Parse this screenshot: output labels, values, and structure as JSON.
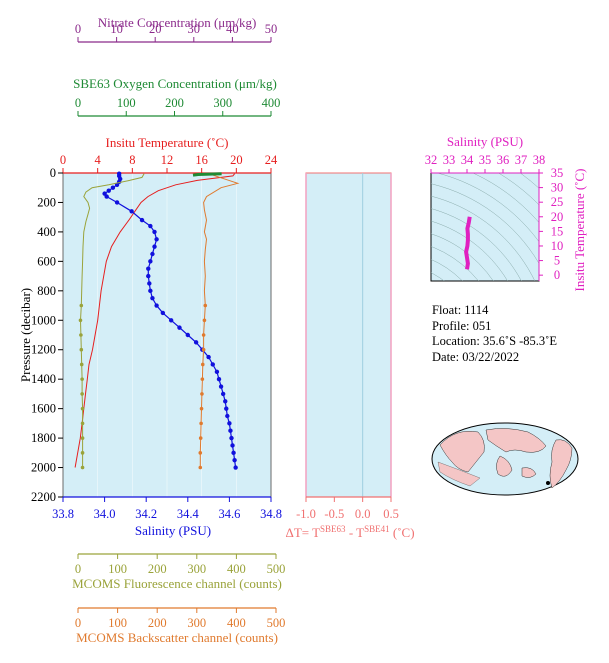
{
  "colors": {
    "nitrate": "#8b2a8b",
    "oxygen": "#1e8a34",
    "temperature": "#e61e1e",
    "salinity": "#1010dd",
    "fluorescence": "#9aa33a",
    "backscatter": "#e07a2e",
    "delta": "#f07070",
    "ts_panel": "#e020c0",
    "plot_bg": "#d4eef7"
  },
  "axes": {
    "nitrate": {
      "label": "Nitrate Concentration (μm/kg)",
      "ticks": [
        "0",
        "10",
        "20",
        "30",
        "40",
        "50"
      ]
    },
    "oxygen": {
      "label": "SBE63 Oxygen Concentration (μm/kg)",
      "ticks": [
        "0",
        "100",
        "200",
        "300",
        "400"
      ]
    },
    "temperature": {
      "label": "Insitu Temperature (˚C)",
      "ticks": [
        "0",
        "4",
        "8",
        "12",
        "16",
        "20",
        "24"
      ]
    },
    "pressure": {
      "label": "Pressure (decibar)",
      "ticks": [
        "0",
        "200",
        "400",
        "600",
        "800",
        "1000",
        "1200",
        "1400",
        "1600",
        "1800",
        "2000",
        "2200"
      ]
    },
    "salinity": {
      "label": "Salinity (PSU)",
      "ticks": [
        "33.8",
        "34.0",
        "34.2",
        "34.4",
        "34.6",
        "34.8"
      ]
    },
    "delta": {
      "label_prefix": "ΔT= T",
      "label_sup1": "SBE63",
      "label_mid": " - T",
      "label_sup2": "SBE41",
      "label_suffix": " (˚C)",
      "ticks": [
        "-1.0",
        "-0.5",
        "0.0",
        "0.5"
      ]
    },
    "fluorescence": {
      "label": "MCOMS Fluorescence channel (counts)",
      "ticks": [
        "0",
        "100",
        "200",
        "300",
        "400",
        "500"
      ]
    },
    "backscatter": {
      "label": "MCOMS Backscatter channel (counts)",
      "ticks": [
        "0",
        "100",
        "200",
        "300",
        "400",
        "500"
      ]
    },
    "ts_salinity": {
      "label": "Salinity (PSU)",
      "ticks": [
        "32",
        "33",
        "34",
        "35",
        "36",
        "37",
        "38"
      ]
    },
    "ts_temperature": {
      "label": "Insitu Temperature (˚C)",
      "ticks": [
        "0",
        "5",
        "10",
        "15",
        "20",
        "25",
        "30",
        "35"
      ]
    }
  },
  "info": {
    "float": "Float:  1114",
    "profile": "Profile:  051",
    "location": "Location:  35.6˚S  -85.3˚E",
    "date": "Date:  03/22/2022"
  },
  "chart_data": [
    {
      "type": "line",
      "name_ref": "main-profile",
      "ylim": [
        2200,
        0
      ],
      "series": [
        {
          "axis": "temperature",
          "xlim": [
            0,
            24
          ],
          "points": [
            [
              19.8,
              5
            ],
            [
              19.6,
              20
            ],
            [
              15.5,
              50
            ],
            [
              13.0,
              80
            ],
            [
              11.0,
              120
            ],
            [
              9.8,
              160
            ],
            [
              9.0,
              200
            ],
            [
              8.3,
              260
            ],
            [
              7.6,
              320
            ],
            [
              6.6,
              400
            ],
            [
              5.6,
              500
            ],
            [
              5.0,
              600
            ],
            [
              4.7,
              700
            ],
            [
              4.4,
              800
            ],
            [
              4.2,
              900
            ],
            [
              4.0,
              1000
            ],
            [
              3.7,
              1100
            ],
            [
              3.4,
              1200
            ],
            [
              3.0,
              1300
            ],
            [
              2.8,
              1400
            ],
            [
              2.6,
              1500
            ],
            [
              2.4,
              1600
            ],
            [
              2.2,
              1700
            ],
            [
              2.0,
              1800
            ],
            [
              1.7,
              1900
            ],
            [
              1.4,
              2000
            ]
          ]
        },
        {
          "axis": "salinity",
          "xlim": [
            33.8,
            34.8
          ],
          "points": [
            [
              34.07,
              5
            ],
            [
              34.07,
              20
            ],
            [
              34.075,
              40
            ],
            [
              34.07,
              60
            ],
            [
              34.06,
              80
            ],
            [
              34.04,
              100
            ],
            [
              34.02,
              120
            ],
            [
              34.0,
              140
            ],
            [
              34.01,
              160
            ],
            [
              34.06,
              200
            ],
            [
              34.13,
              260
            ],
            [
              34.18,
              320
            ],
            [
              34.22,
              360
            ],
            [
              34.24,
              400
            ],
            [
              34.25,
              450
            ],
            [
              34.24,
              500
            ],
            [
              34.23,
              550
            ],
            [
              34.22,
              600
            ],
            [
              34.21,
              650
            ],
            [
              34.21,
              700
            ],
            [
              34.215,
              750
            ],
            [
              34.22,
              800
            ],
            [
              34.23,
              850
            ],
            [
              34.25,
              900
            ],
            [
              34.28,
              950
            ],
            [
              34.32,
              1000
            ],
            [
              34.36,
              1050
            ],
            [
              34.4,
              1100
            ],
            [
              34.44,
              1150
            ],
            [
              34.47,
              1200
            ],
            [
              34.5,
              1250
            ],
            [
              34.52,
              1300
            ],
            [
              34.54,
              1350
            ],
            [
              34.55,
              1400
            ],
            [
              34.56,
              1450
            ],
            [
              34.57,
              1500
            ],
            [
              34.58,
              1550
            ],
            [
              34.585,
              1600
            ],
            [
              34.59,
              1650
            ],
            [
              34.6,
              1700
            ],
            [
              34.605,
              1750
            ],
            [
              34.61,
              1800
            ],
            [
              34.615,
              1850
            ],
            [
              34.62,
              1900
            ],
            [
              34.625,
              1950
            ],
            [
              34.63,
              2000
            ]
          ]
        },
        {
          "axis": "fluorescence",
          "xlim": [
            0,
            500
          ],
          "points": [
            [
              195,
              5
            ],
            [
              190,
              30
            ],
            [
              160,
              50
            ],
            [
              110,
              80
            ],
            [
              70,
              100
            ],
            [
              55,
              130
            ],
            [
              50,
              160
            ],
            [
              60,
              200
            ],
            [
              64,
              240
            ],
            [
              60,
              280
            ],
            [
              55,
              330
            ],
            [
              50,
              400
            ],
            [
              48,
              500
            ],
            [
              47,
              600
            ],
            [
              46,
              700
            ],
            [
              45,
              800
            ],
            [
              44,
              900
            ],
            [
              42,
              1000
            ],
            [
              43,
              1100
            ],
            [
              44,
              1200
            ],
            [
              45,
              1300
            ],
            [
              46,
              1400
            ],
            [
              46,
              1500
            ],
            [
              47,
              1600
            ],
            [
              47,
              1700
            ],
            [
              47,
              1800
            ],
            [
              47,
              1900
            ],
            [
              47,
              2000
            ]
          ]
        },
        {
          "axis": "backscatter",
          "xlim": [
            0,
            500
          ],
          "points": [
            [
              350,
              5
            ],
            [
              420,
              70
            ],
            [
              380,
              100
            ],
            [
              345,
              160
            ],
            [
              338,
              200
            ],
            [
              340,
              250
            ],
            [
              345,
              320
            ],
            [
              340,
              400
            ],
            [
              345,
              450
            ],
            [
              342,
              520
            ],
            [
              340,
              600
            ],
            [
              342,
              700
            ],
            [
              340,
              800
            ],
            [
              342,
              900
            ],
            [
              340,
              1000
            ],
            [
              338,
              1100
            ],
            [
              338,
              1200
            ],
            [
              336,
              1300
            ],
            [
              335,
              1400
            ],
            [
              334,
              1500
            ],
            [
              333,
              1600
            ],
            [
              332,
              1700
            ],
            [
              331,
              1800
            ],
            [
              330,
              1900
            ],
            [
              330,
              2000
            ]
          ]
        },
        {
          "axis": "oxygen",
          "xlim": [
            0,
            400
          ],
          "points": [
            [
              305,
              5
            ],
            [
              260,
              10
            ],
            [
              250,
              15
            ]
          ]
        }
      ]
    },
    {
      "type": "line",
      "name_ref": "delta-t",
      "xlim": [
        -1.0,
        0.5
      ],
      "ylim": [
        2200,
        0
      ],
      "values": [
        0.0
      ]
    },
    {
      "type": "scatter",
      "name_ref": "t-s-diagram",
      "xlim": [
        32,
        38
      ],
      "ylim": [
        -2,
        35
      ],
      "points": [
        [
          34.0,
          2
        ],
        [
          34.05,
          4
        ],
        [
          34.0,
          6
        ],
        [
          33.95,
          8
        ],
        [
          34.02,
          10
        ],
        [
          34.05,
          12
        ],
        [
          34.05,
          14
        ],
        [
          34.02,
          16
        ],
        [
          34.1,
          18
        ],
        [
          34.15,
          20
        ]
      ]
    }
  ]
}
